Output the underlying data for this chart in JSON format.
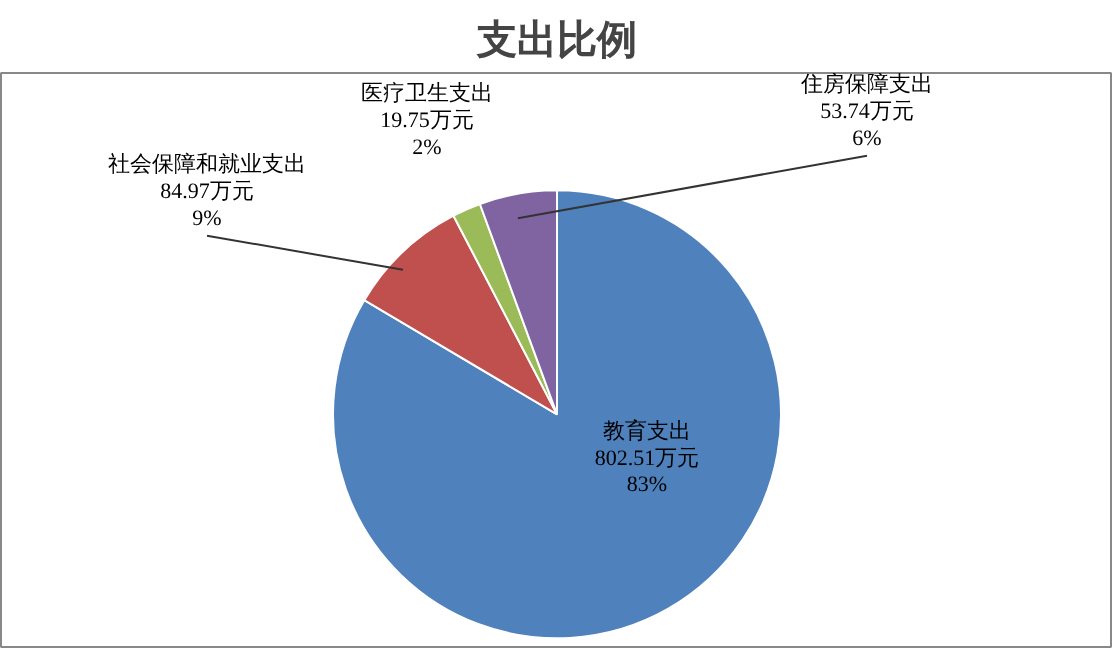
{
  "chart_data": {
    "type": "pie",
    "title": "支出比例",
    "categories": [
      "教育支出",
      "社会保障和就业支出",
      "医疗卫生支出",
      "住房保障支出"
    ],
    "values": [
      802.51,
      84.97,
      19.75,
      53.74
    ],
    "colors": [
      "#4f81bd",
      "#c0504d",
      "#9bbb59",
      "#8064a2"
    ],
    "value_labels": [
      "802.51万元\n83%",
      "84.97万元\n9%",
      "19.75万元\n2%",
      "53.74万元\n6%"
    ],
    "legend": false
  }
}
